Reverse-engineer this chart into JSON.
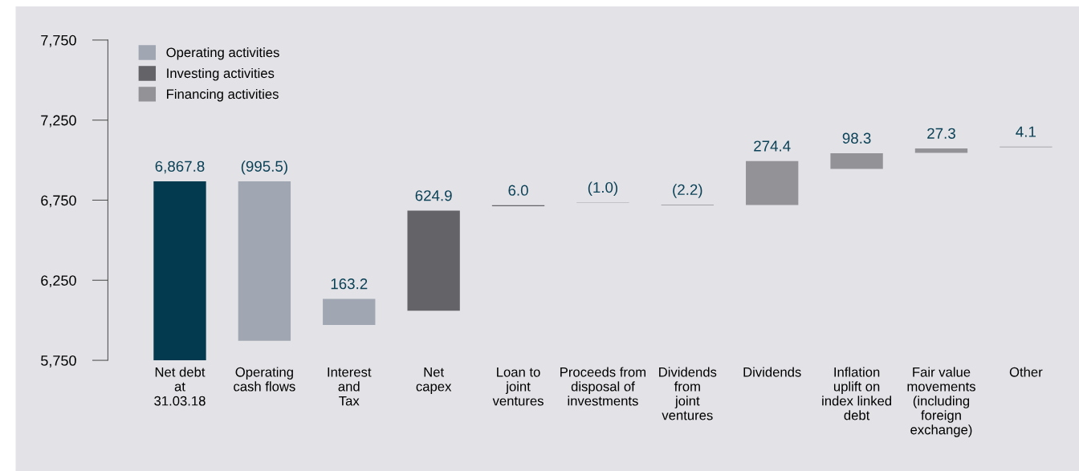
{
  "chart_data": {
    "type": "bar",
    "categories": [
      "Net debt\nat\n31.03.18",
      "Operating\ncash flows",
      "Interest\nand\nTax",
      "Net\ncapex",
      "Loan to\njoint\nventures",
      "Proceeds from\ndisposal of\ninvestments",
      "Dividends\nfrom\njoint\nventures",
      "Dividends",
      "Inflation\nuplift on\nindex linked\ndebt",
      "Fair value\nmovements\n(including\nforeign\nexchange)",
      "Other"
    ],
    "series": [
      {
        "color": "#033a4f",
        "values": [
          6867.8,
          null,
          null,
          null,
          null,
          null,
          null,
          null,
          null,
          null,
          null
        ],
        "base": [
          0,
          null,
          null,
          null,
          null,
          null,
          null,
          null,
          null,
          null,
          null
        ],
        "value_labels": [
          "6,867.8",
          null,
          null,
          null,
          null,
          null,
          null,
          null,
          null,
          null,
          null
        ]
      },
      {
        "name": "Operating activities",
        "color": "#a0a7b2",
        "values": [
          null,
          -995.5,
          163.2,
          null,
          null,
          null,
          null,
          null,
          null,
          null,
          null
        ],
        "base": [
          null,
          6867.8,
          5971,
          null,
          null,
          null,
          null,
          null,
          null,
          null,
          null
        ],
        "value_labels": [
          null,
          "(995.5)",
          "163.2",
          null,
          null,
          null,
          null,
          null,
          null,
          null,
          null
        ]
      },
      {
        "name": "Investing activities",
        "color": "#646468",
        "values": [
          null,
          null,
          null,
          624.9,
          6.0,
          -1.0,
          -2.2,
          null,
          null,
          null,
          null
        ],
        "base": [
          null,
          null,
          null,
          6060,
          6712,
          6736,
          6722,
          null,
          null,
          null,
          null
        ],
        "value_labels": [
          null,
          null,
          null,
          "624.9",
          "6.0",
          "(1.0)",
          "(2.2)",
          null,
          null,
          null,
          null
        ]
      },
      {
        "name": "Financing activities",
        "color": "#939397",
        "values": [
          null,
          null,
          null,
          null,
          null,
          null,
          null,
          274.4,
          98.3,
          27.3,
          4.1
        ],
        "base": [
          null,
          null,
          null,
          null,
          null,
          null,
          null,
          6720,
          6945,
          7046,
          7080
        ],
        "value_labels": [
          null,
          null,
          null,
          null,
          null,
          null,
          null,
          "274.4",
          "98.3",
          "27.3",
          "4.1"
        ]
      }
    ],
    "ylim": [
      5750,
      7750
    ],
    "yticks": [
      {
        "value": 5750,
        "label": "5,750"
      },
      {
        "value": 6250,
        "label": "6,250"
      },
      {
        "value": 6750,
        "label": "6,750"
      },
      {
        "value": 7250,
        "label": "7,250"
      },
      {
        "value": 7750,
        "label": "7,750"
      }
    ],
    "legend": "top left",
    "grid": false
  }
}
